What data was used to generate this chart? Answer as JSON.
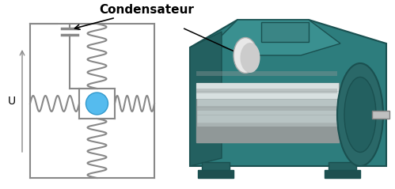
{
  "bg_color": "#ffffff",
  "circuit_color": "#888888",
  "label_condensateur": "Condensateur",
  "label_u": "U",
  "label_fontsize": 11,
  "u_fontsize": 10,
  "circuit_lw": 1.5,
  "rotor_color": "#55bbee",
  "motor_teal": "#2d7d7d",
  "motor_dark": "#1a5050",
  "motor_mid": "#3a9090",
  "motor_light": "#4aabab",
  "motor_silver": "#b8c4c4",
  "motor_silver_dark": "#909898"
}
